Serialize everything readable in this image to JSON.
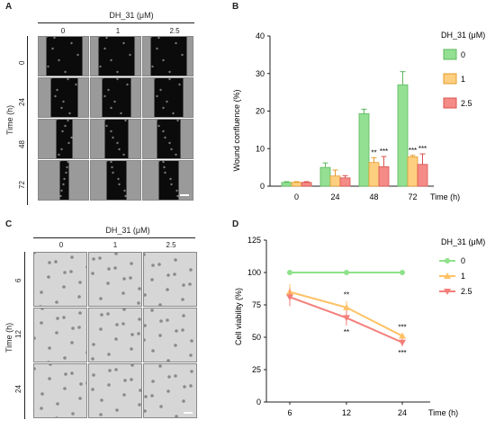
{
  "panels": {
    "A": {
      "letter": "A",
      "header": "DH_31 (μM)",
      "cols": [
        "0",
        "1",
        "2.5"
      ],
      "rows": [
        "0",
        "24",
        "48",
        "72"
      ],
      "side_label": "Time (h)"
    },
    "B": {
      "letter": "B",
      "ylabel": "Wound confluence (%)",
      "xlabel": "Time (h)",
      "legend_title": "DH_31 (μM)",
      "legend": [
        "0",
        "1",
        "2.5"
      ],
      "yticks": [
        "0",
        "10",
        "20",
        "30",
        "40"
      ],
      "xticks": [
        "0",
        "24",
        "48",
        "72"
      ]
    },
    "C": {
      "letter": "C",
      "header": "DH_31 (μM)",
      "cols": [
        "0",
        "1",
        "2.5"
      ],
      "rows": [
        "6",
        "12",
        "24"
      ],
      "side_label": "Time (h)"
    },
    "D": {
      "letter": "D",
      "ylabel": "Cell viability (%)",
      "xlabel": "Time (h)",
      "legend_title": "DH_31 (μM)",
      "legend": [
        "0",
        "1",
        "2.5"
      ],
      "yticks": [
        "0",
        "25",
        "50",
        "75",
        "100",
        "125"
      ],
      "xticks": [
        "6",
        "12",
        "24"
      ]
    }
  },
  "colors": {
    "green": "#93e092",
    "green_stroke": "#5cb85c",
    "orange": "#ffcf80",
    "orange_stroke": "#e59a2a",
    "red": "#f58b86",
    "red_stroke": "#d9534f",
    "line_green": "#8ee28a",
    "line_orange": "#ffc266",
    "line_red": "#f47f7a"
  },
  "chart_data": [
    {
      "type": "bar",
      "title": "",
      "xlabel": "Time (h)",
      "ylabel": "Wound confluence (%)",
      "ylim": [
        0,
        40
      ],
      "categories": [
        "0",
        "24",
        "48",
        "72"
      ],
      "series": [
        {
          "name": "0",
          "values": [
            1.0,
            5.0,
            19.3,
            27.0
          ],
          "errors": [
            0.2,
            1.2,
            1.2,
            3.5
          ]
        },
        {
          "name": "1",
          "values": [
            1.0,
            2.7,
            6.3,
            7.8
          ],
          "errors": [
            0.2,
            1.6,
            1.3,
            0.4
          ]
        },
        {
          "name": "2.5",
          "values": [
            1.0,
            2.2,
            5.2,
            5.8
          ],
          "errors": [
            0.2,
            0.6,
            2.7,
            2.8
          ]
        }
      ],
      "annotations": [
        {
          "category": "48",
          "series": "1",
          "text": "**"
        },
        {
          "category": "48",
          "series": "2.5",
          "text": "***"
        },
        {
          "category": "72",
          "series": "1",
          "text": "***"
        },
        {
          "category": "72",
          "series": "2.5",
          "text": "***"
        }
      ],
      "legend_title": "DH_31 (μM)",
      "legend_position": "top-right"
    },
    {
      "type": "line",
      "title": "",
      "xlabel": "Time (h)",
      "ylabel": "Cell viability (%)",
      "ylim": [
        0,
        125
      ],
      "x": [
        "6",
        "12",
        "24"
      ],
      "series": [
        {
          "name": "0",
          "values": [
            100,
            100,
            100
          ],
          "errors": [
            1,
            1,
            1
          ]
        },
        {
          "name": "1",
          "values": [
            85,
            73,
            51
          ],
          "errors": [
            6,
            5,
            2
          ]
        },
        {
          "name": "2.5",
          "values": [
            81,
            65,
            46
          ],
          "errors": [
            7,
            6,
            3
          ]
        }
      ],
      "annotations": [
        {
          "x": "12",
          "series": "1",
          "text": "**"
        },
        {
          "x": "12",
          "series": "2.5",
          "text": "**"
        },
        {
          "x": "24",
          "series": "1",
          "text": "***"
        },
        {
          "x": "24",
          "series": "2.5",
          "text": "***"
        }
      ],
      "legend_title": "DH_31 (μM)",
      "legend_position": "top-right"
    }
  ]
}
